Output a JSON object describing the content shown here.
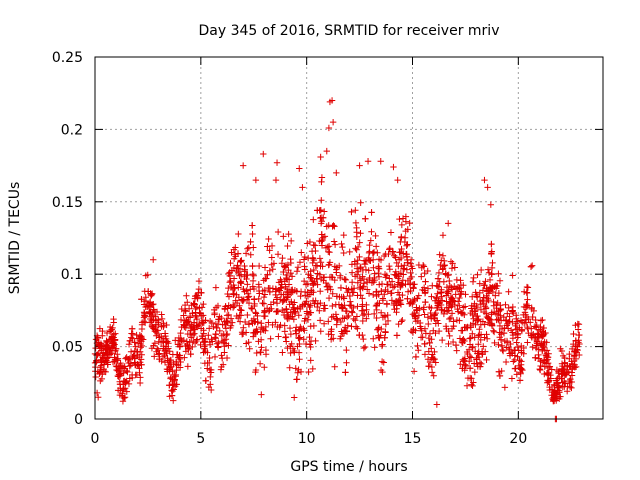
{
  "colors": {
    "series": "#e00000",
    "grid": "#a0a0a0",
    "axis": "#000000"
  },
  "chart_data": {
    "type": "scatter",
    "title": "Day 345 of 2016, SRMTID for receiver mriv",
    "xlabel": "GPS time / hours",
    "ylabel": "SRMTID / TECUs",
    "xlim": [
      0,
      24
    ],
    "ylim": [
      0,
      0.25
    ],
    "xticks": [
      0,
      5,
      10,
      15,
      20
    ],
    "xtick_labels": [
      "0",
      "5",
      "10",
      "15",
      "20"
    ],
    "yticks": [
      0,
      0.05,
      0.1,
      0.15,
      0.2,
      0.25
    ],
    "ytick_labels": [
      "0",
      "0.05",
      "0.1",
      "0.15",
      "0.2",
      "0.25"
    ],
    "grid": true,
    "marker": "plus",
    "series": [
      {
        "name": "SRMTID",
        "profile_x": [
          0,
          0.5,
          1,
          1.5,
          2,
          2.5,
          3,
          3.5,
          4,
          4.5,
          5,
          5.5,
          6,
          6.5,
          7,
          7.5,
          8,
          8.5,
          9,
          9.5,
          10,
          10.5,
          11,
          11.5,
          12,
          12.5,
          13,
          13.5,
          14,
          14.5,
          15,
          15.5,
          16,
          16.5,
          17,
          17.5,
          18,
          18.5,
          19,
          19.5,
          20,
          20.5,
          21,
          21.5,
          22,
          22.5,
          22.9
        ],
        "profile_mean": [
          0.035,
          0.038,
          0.04,
          0.042,
          0.05,
          0.06,
          0.065,
          0.05,
          0.045,
          0.055,
          0.06,
          0.062,
          0.065,
          0.075,
          0.09,
          0.085,
          0.08,
          0.085,
          0.075,
          0.08,
          0.085,
          0.095,
          0.1,
          0.09,
          0.085,
          0.09,
          0.085,
          0.095,
          0.1,
          0.095,
          0.085,
          0.08,
          0.075,
          0.085,
          0.075,
          0.07,
          0.075,
          0.07,
          0.065,
          0.06,
          0.07,
          0.06,
          0.045,
          0.035,
          0.03,
          0.035,
          0.035
        ],
        "profile_spread": [
          0.015,
          0.015,
          0.015,
          0.015,
          0.02,
          0.02,
          0.02,
          0.02,
          0.02,
          0.02,
          0.02,
          0.025,
          0.025,
          0.03,
          0.035,
          0.04,
          0.04,
          0.035,
          0.035,
          0.04,
          0.045,
          0.05,
          0.055,
          0.045,
          0.04,
          0.045,
          0.04,
          0.04,
          0.04,
          0.04,
          0.035,
          0.035,
          0.035,
          0.035,
          0.035,
          0.035,
          0.04,
          0.035,
          0.03,
          0.03,
          0.03,
          0.03,
          0.02,
          0.015,
          0.015,
          0.015,
          0.015
        ],
        "point_count": 2400,
        "seed": 345,
        "notable_points": [
          [
            0.0,
            0.045
          ],
          [
            0.05,
            0.055
          ],
          [
            0.1,
            0.018
          ],
          [
            0.15,
            0.015
          ],
          [
            2.4,
            0.099
          ],
          [
            2.75,
            0.11
          ],
          [
            4.25,
            0.075
          ],
          [
            7.0,
            0.175
          ],
          [
            7.6,
            0.165
          ],
          [
            7.95,
            0.183
          ],
          [
            8.55,
            0.165
          ],
          [
            8.6,
            0.177
          ],
          [
            9.65,
            0.173
          ],
          [
            9.8,
            0.16
          ],
          [
            10.95,
            0.185
          ],
          [
            11.05,
            0.201
          ],
          [
            11.1,
            0.219
          ],
          [
            11.2,
            0.22
          ],
          [
            11.25,
            0.205
          ],
          [
            11.4,
            0.17
          ],
          [
            12.5,
            0.175
          ],
          [
            12.9,
            0.178
          ],
          [
            13.5,
            0.178
          ],
          [
            14.1,
            0.174
          ],
          [
            14.3,
            0.165
          ],
          [
            18.4,
            0.165
          ],
          [
            18.55,
            0.16
          ],
          [
            18.7,
            0.148
          ],
          [
            16.15,
            0.01
          ],
          [
            21.75,
            0.0
          ],
          [
            21.8,
            0.0
          ]
        ]
      }
    ]
  }
}
